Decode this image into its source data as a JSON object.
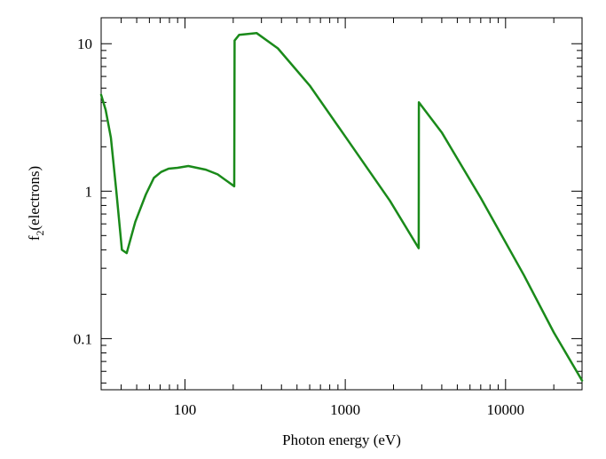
{
  "chart_data": {
    "type": "line",
    "title": "",
    "xlabel": "Photon energy (eV)",
    "ylabel": {
      "prefix": "f",
      "subscript": "2",
      "suffix": "(electrons)"
    },
    "x_scale": "log",
    "y_scale": "log",
    "xlim": [
      30,
      30000
    ],
    "ylim": [
      0.045,
      15
    ],
    "x_ticks": [
      {
        "value": 100,
        "label": "100"
      },
      {
        "value": 1000,
        "label": "1000"
      },
      {
        "value": 10000,
        "label": "10000"
      }
    ],
    "y_ticks": [
      {
        "value": 0.1,
        "label": "0.1"
      },
      {
        "value": 1,
        "label": "1"
      },
      {
        "value": 10,
        "label": "10"
      }
    ],
    "grid": false,
    "legend": "none",
    "colors": {
      "line": "#1a8a1a",
      "axes": "#000000"
    },
    "series": [
      {
        "x": [
          30,
          32,
          34.5,
          37.3,
          40.4,
          43.3,
          49,
          57,
          64,
          71,
          79,
          90,
          105,
          135,
          160,
          203,
          204,
          218,
          280,
          380,
          600,
          1000,
          1900,
          2870,
          2880,
          4000,
          7000,
          13000,
          20000,
          30000
        ],
        "y": [
          4.5,
          3.55,
          2.3,
          1.0,
          0.4,
          0.38,
          0.62,
          0.95,
          1.23,
          1.35,
          1.42,
          1.44,
          1.48,
          1.4,
          1.3,
          1.08,
          10.5,
          11.5,
          11.8,
          9.3,
          5.2,
          2.35,
          0.86,
          0.41,
          4.0,
          2.5,
          0.9,
          0.27,
          0.11,
          0.052
        ]
      }
    ]
  }
}
